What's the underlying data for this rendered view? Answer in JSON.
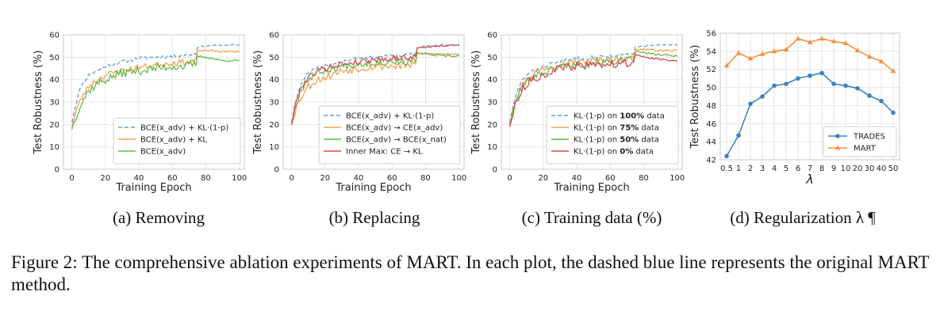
{
  "figure_caption": "Figure 2: The comprehensive ablation experiments of MART. In each plot, the dashed blue line represents the original MART method.",
  "colors": {
    "blue": "#5a9fd4",
    "orange": "#f5a04f",
    "green": "#64b94a",
    "red": "#d9484c",
    "trades": "#3a83c0",
    "mart": "#f5913e"
  },
  "chart_data": [
    {
      "type": "line",
      "id": "a",
      "subtitle": "(a) Removing",
      "xlabel": "Training Epoch",
      "ylabel": "Test Robustness (%)",
      "xlim": [
        -5,
        103
      ],
      "ylim": [
        0,
        60
      ],
      "xticks": [
        0,
        20,
        40,
        60,
        80,
        100
      ],
      "yticks": [
        0,
        10,
        20,
        30,
        40,
        50,
        60
      ],
      "legend_position": "bottom-right",
      "series": [
        {
          "name": "BCE(x_adv) + KL·(1-p)",
          "color": "#5a9fd4",
          "dashed": true,
          "seed": 11,
          "anchors": [
            [
              0,
              21
            ],
            [
              3,
              31
            ],
            [
              6,
              38
            ],
            [
              10,
              42
            ],
            [
              15,
              44
            ],
            [
              20,
              46
            ],
            [
              30,
              48
            ],
            [
              40,
              49.5
            ],
            [
              50,
              50
            ],
            [
              60,
              50.5
            ],
            [
              70,
              51
            ],
            [
              74,
              51.5
            ],
            [
              75,
              54.5
            ],
            [
              80,
              55
            ],
            [
              90,
              55.5
            ],
            [
              100,
              55.5
            ]
          ],
          "noise_pre": 0.8,
          "noise_post": 0.3
        },
        {
          "name": "BCE(x_adv) + KL",
          "color": "#f5a04f",
          "dashed": false,
          "seed": 23,
          "anchors": [
            [
              0,
              19
            ],
            [
              3,
              27
            ],
            [
              6,
              32
            ],
            [
              10,
              37
            ],
            [
              15,
              40
            ],
            [
              20,
              42
            ],
            [
              30,
              44
            ],
            [
              40,
              45.5
            ],
            [
              50,
              46.5
            ],
            [
              60,
              47.5
            ],
            [
              70,
              48
            ],
            [
              74,
              49
            ],
            [
              75,
              52.5
            ],
            [
              80,
              53
            ],
            [
              90,
              52.5
            ],
            [
              100,
              52.5
            ]
          ],
          "noise_pre": 1.4,
          "noise_post": 0.4
        },
        {
          "name": "BCE(x_adv)",
          "color": "#64b94a",
          "dashed": false,
          "seed": 37,
          "anchors": [
            [
              0,
              18
            ],
            [
              3,
              25
            ],
            [
              6,
              30
            ],
            [
              10,
              35
            ],
            [
              15,
              38
            ],
            [
              20,
              40
            ],
            [
              30,
              43
            ],
            [
              40,
              44
            ],
            [
              50,
              45
            ],
            [
              60,
              46
            ],
            [
              70,
              46
            ],
            [
              74,
              47
            ],
            [
              75,
              50.5
            ],
            [
              80,
              50
            ],
            [
              90,
              48.5
            ],
            [
              100,
              48.5
            ]
          ],
          "noise_pre": 2.0,
          "noise_post": 0.4
        }
      ]
    },
    {
      "type": "line",
      "id": "b",
      "subtitle": "(b) Replacing",
      "xlabel": "Training Epoch",
      "ylabel": "Test Robustness (%)",
      "xlim": [
        -5,
        103
      ],
      "ylim": [
        0,
        60
      ],
      "xticks": [
        0,
        20,
        40,
        60,
        80,
        100
      ],
      "yticks": [
        0,
        10,
        20,
        30,
        40,
        50,
        60
      ],
      "legend_position": "bottom-right",
      "series": [
        {
          "name": "BCE(x_adv) + KL·(1-p)",
          "color": "#5a9fd4",
          "dashed": true,
          "seed": 41,
          "anchors": [
            [
              0,
              21
            ],
            [
              3,
              32
            ],
            [
              6,
              39
            ],
            [
              10,
              43
            ],
            [
              15,
              45
            ],
            [
              20,
              46
            ],
            [
              30,
              48
            ],
            [
              40,
              49.5
            ],
            [
              50,
              50
            ],
            [
              60,
              50.5
            ],
            [
              70,
              51
            ],
            [
              74,
              51.5
            ],
            [
              75,
              54.5
            ],
            [
              80,
              55
            ],
            [
              90,
              55.5
            ],
            [
              100,
              55.5
            ]
          ],
          "noise_pre": 0.8,
          "noise_post": 0.3
        },
        {
          "name": "BCE(x_adv) → CE(x_adv)",
          "color": "#f5a04f",
          "dashed": false,
          "seed": 53,
          "anchors": [
            [
              0,
              20
            ],
            [
              3,
              28
            ],
            [
              6,
              33
            ],
            [
              10,
              37
            ],
            [
              15,
              40
            ],
            [
              20,
              41
            ],
            [
              30,
              44
            ],
            [
              40,
              45
            ],
            [
              50,
              46
            ],
            [
              60,
              46
            ],
            [
              70,
              46.5
            ],
            [
              74,
              47
            ],
            [
              75,
              51.5
            ],
            [
              80,
              51.5
            ],
            [
              90,
              51.5
            ],
            [
              100,
              51.5
            ]
          ],
          "noise_pre": 1.8,
          "noise_post": 0.4
        },
        {
          "name": "BCE(x_adv) → BCE(x_nat)",
          "color": "#64b94a",
          "dashed": false,
          "seed": 67,
          "anchors": [
            [
              0,
              20
            ],
            [
              3,
              30
            ],
            [
              6,
              36
            ],
            [
              10,
              40
            ],
            [
              15,
              43
            ],
            [
              20,
              44
            ],
            [
              30,
              46
            ],
            [
              40,
              47
            ],
            [
              50,
              47.5
            ],
            [
              60,
              48
            ],
            [
              70,
              48
            ],
            [
              74,
              48.5
            ],
            [
              75,
              52
            ],
            [
              80,
              51.5
            ],
            [
              90,
              50.5
            ],
            [
              100,
              50.5
            ]
          ],
          "noise_pre": 1.5,
          "noise_post": 0.5
        },
        {
          "name": "Inner Max: CE → KL",
          "color": "#d9484c",
          "dashed": false,
          "seed": 79,
          "anchors": [
            [
              0,
              20
            ],
            [
              3,
              31
            ],
            [
              6,
              37
            ],
            [
              10,
              41
            ],
            [
              15,
              44
            ],
            [
              20,
              45
            ],
            [
              30,
              47
            ],
            [
              40,
              48
            ],
            [
              50,
              49
            ],
            [
              60,
              49.5
            ],
            [
              70,
              50
            ],
            [
              74,
              50.5
            ],
            [
              75,
              54
            ],
            [
              80,
              54.5
            ],
            [
              90,
              55
            ],
            [
              100,
              55.5
            ]
          ],
          "noise_pre": 1.3,
          "noise_post": 0.3
        }
      ]
    },
    {
      "type": "line",
      "id": "c",
      "subtitle": "(c) Training data (%)",
      "xlabel": "Training Epoch",
      "ylabel": "Test Robustness (%)",
      "xlim": [
        -5,
        103
      ],
      "ylim": [
        0,
        60
      ],
      "xticks": [
        0,
        20,
        40,
        60,
        80,
        100
      ],
      "yticks": [
        0,
        10,
        20,
        30,
        40,
        50,
        60
      ],
      "legend_position": "bottom-right",
      "series": [
        {
          "name_prefix": "KL·(1-p) on ",
          "name_bold": "100%",
          "name_suffix": " data",
          "color": "#5a9fd4",
          "dashed": true,
          "seed": 83,
          "anchors": [
            [
              0,
              21
            ],
            [
              3,
              31
            ],
            [
              6,
              38
            ],
            [
              10,
              42
            ],
            [
              15,
              44
            ],
            [
              20,
              46
            ],
            [
              30,
              48
            ],
            [
              40,
              49.5
            ],
            [
              50,
              50
            ],
            [
              60,
              50.5
            ],
            [
              70,
              51
            ],
            [
              74,
              51.5
            ],
            [
              75,
              54.5
            ],
            [
              80,
              55
            ],
            [
              90,
              55.5
            ],
            [
              100,
              55.5
            ]
          ],
          "noise_pre": 0.8,
          "noise_post": 0.3
        },
        {
          "name_prefix": "KL·(1-p) on ",
          "name_bold": "75%",
          "name_suffix": " data",
          "color": "#f5a04f",
          "dashed": false,
          "seed": 97,
          "anchors": [
            [
              0,
              20
            ],
            [
              3,
              30
            ],
            [
              6,
              36
            ],
            [
              10,
              40
            ],
            [
              15,
              43
            ],
            [
              20,
              45
            ],
            [
              30,
              47
            ],
            [
              40,
              48
            ],
            [
              50,
              48.5
            ],
            [
              60,
              49
            ],
            [
              70,
              49.5
            ],
            [
              74,
              50
            ],
            [
              75,
              53.5
            ],
            [
              80,
              53.5
            ],
            [
              90,
              53
            ],
            [
              100,
              53
            ]
          ],
          "noise_pre": 1.4,
          "noise_post": 0.4
        },
        {
          "name_prefix": "KL·(1-p) on ",
          "name_bold": "50%",
          "name_suffix": " data",
          "color": "#64b94a",
          "dashed": false,
          "seed": 101,
          "anchors": [
            [
              0,
              20
            ],
            [
              3,
              29
            ],
            [
              6,
              35
            ],
            [
              10,
              39
            ],
            [
              15,
              42
            ],
            [
              20,
              43
            ],
            [
              30,
              46
            ],
            [
              40,
              47
            ],
            [
              50,
              47.5
            ],
            [
              60,
              48
            ],
            [
              70,
              48.5
            ],
            [
              74,
              49
            ],
            [
              75,
              52.5
            ],
            [
              80,
              52
            ],
            [
              90,
              51
            ],
            [
              100,
              50.5
            ]
          ],
          "noise_pre": 1.6,
          "noise_post": 0.4
        },
        {
          "name_prefix": "KL·(1-p) on ",
          "name_bold": "0%",
          "name_suffix": " data",
          "color": "#d9484c",
          "dashed": false,
          "seed": 113,
          "anchors": [
            [
              0,
              19
            ],
            [
              3,
              28
            ],
            [
              6,
              34
            ],
            [
              10,
              38
            ],
            [
              15,
              41
            ],
            [
              20,
              42
            ],
            [
              30,
              45
            ],
            [
              40,
              46
            ],
            [
              50,
              46.5
            ],
            [
              60,
              47
            ],
            [
              70,
              47.5
            ],
            [
              74,
              48
            ],
            [
              75,
              51
            ],
            [
              80,
              50
            ],
            [
              90,
              49
            ],
            [
              100,
              48.5
            ]
          ],
          "noise_pre": 1.8,
          "noise_post": 0.4
        }
      ]
    },
    {
      "type": "line",
      "id": "d",
      "subtitle": "(d) Regularization λ ¶",
      "xlabel": "λ",
      "ylabel": "Test Robustness (%)",
      "ylim": [
        42,
        56
      ],
      "categories": [
        "0.5",
        "1",
        "2",
        "3",
        "4",
        "5",
        "6",
        "7",
        "8",
        "9",
        "10",
        "20",
        "30",
        "40",
        "50"
      ],
      "yticks": [
        42,
        44,
        46,
        48,
        50,
        52,
        54,
        56
      ],
      "legend_position": "bottom-right",
      "series": [
        {
          "name": "TRADES",
          "color": "#3a83c0",
          "marker": "circle",
          "values": [
            42.4,
            44.7,
            48.2,
            49.0,
            50.2,
            50.4,
            51.0,
            51.3,
            51.6,
            50.4,
            50.2,
            49.9,
            49.1,
            48.5,
            47.2
          ]
        },
        {
          "name": "MART",
          "color": "#f5913e",
          "marker": "triangle",
          "values": [
            52.4,
            53.8,
            53.2,
            53.7,
            54.0,
            54.2,
            55.4,
            55.0,
            55.4,
            55.1,
            54.9,
            54.1,
            53.4,
            52.9,
            51.8
          ]
        }
      ]
    }
  ]
}
